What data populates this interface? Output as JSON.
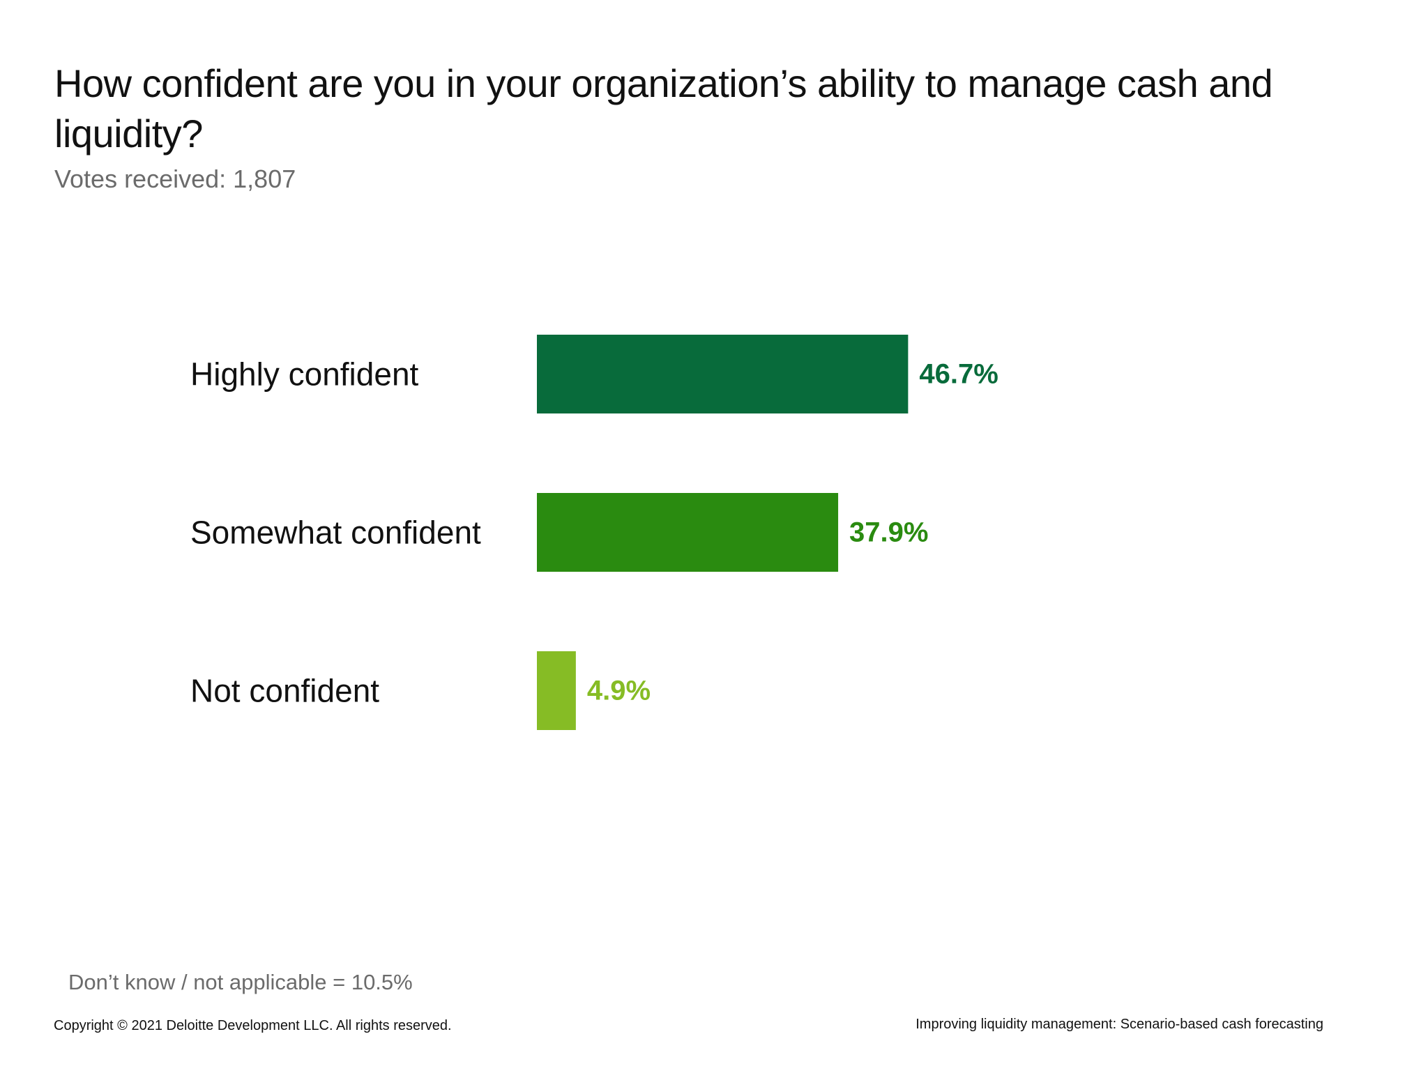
{
  "slide": {
    "title": "How confident are you in your organization’s ability to manage cash and liquidity?",
    "subtitle": "Votes received: 1,807",
    "footnote": "Don’t know / not applicable = 10.5%",
    "copyright": "Copyright © 2021 Deloitte Development LLC. All rights reserved.",
    "doc_title": "Improving liquidity management: Scenario-based cash forecasting"
  },
  "chart_data": {
    "type": "bar",
    "orientation": "horizontal",
    "categories": [
      "Highly confident",
      "Somewhat confident",
      "Not confident"
    ],
    "values": [
      46.7,
      37.9,
      4.9
    ],
    "value_labels": [
      "46.7%",
      "37.9%",
      "4.9%"
    ],
    "colors": [
      "#086B3B",
      "#2A8B10",
      "#86BC25"
    ],
    "title": "",
    "xlabel": "",
    "ylabel": "",
    "xlim": [
      0,
      100
    ],
    "grid": false,
    "legend": "none"
  }
}
